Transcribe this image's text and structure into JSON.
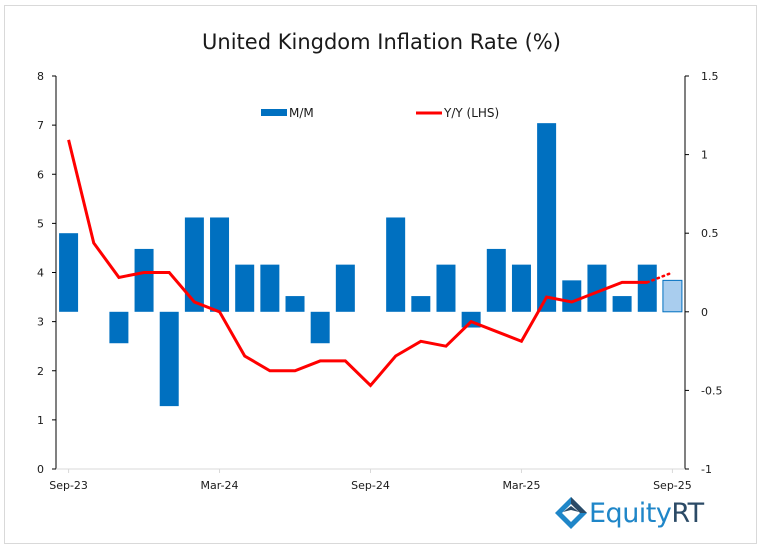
{
  "chart_data": {
    "type": "bar+line",
    "title": "United Kingdom Inflation Rate (%)",
    "categories": [
      "Sep-23",
      "Oct-23",
      "Nov-23",
      "Dec-23",
      "Jan-24",
      "Feb-24",
      "Mar-24",
      "Apr-24",
      "May-24",
      "Jun-24",
      "Jul-24",
      "Aug-24",
      "Sep-24",
      "Oct-24",
      "Nov-24",
      "Dec-24",
      "Jan-25",
      "Feb-25",
      "Mar-25",
      "Apr-25",
      "May-25",
      "Jun-25",
      "Jul-25",
      "Aug-25",
      "Sep-25"
    ],
    "x_tick_labels": [
      "Sep-23",
      "Mar-24",
      "Sep-24",
      "Mar-25",
      "Sep-25"
    ],
    "series": [
      {
        "name": "M/M",
        "type": "bar",
        "axis": "right",
        "color": "#0070c0",
        "forecast_color": "#a9cdee",
        "values": [
          0.5,
          0.0,
          -0.2,
          0.4,
          -0.6,
          0.6,
          0.6,
          0.3,
          0.3,
          0.1,
          -0.2,
          0.3,
          0.0,
          0.6,
          0.1,
          0.3,
          -0.1,
          0.4,
          0.3,
          1.2,
          0.2,
          0.3,
          0.1,
          0.3,
          0.2
        ],
        "forecast_from_index": 24
      },
      {
        "name": "Y/Y (LHS)",
        "type": "line",
        "axis": "left",
        "color": "#ff0000",
        "values": [
          6.7,
          4.6,
          3.9,
          4.0,
          4.0,
          3.4,
          3.2,
          2.3,
          2.0,
          2.0,
          2.2,
          2.2,
          1.7,
          2.3,
          2.6,
          2.5,
          3.0,
          2.8,
          2.6,
          3.5,
          3.4,
          3.6,
          3.8,
          3.8,
          4.0
        ],
        "forecast_from_index": 24
      }
    ],
    "left_axis": {
      "min": 0,
      "max": 8,
      "ticks": [
        0,
        1,
        2,
        3,
        4,
        5,
        6,
        7,
        8
      ]
    },
    "right_axis": {
      "min": -1,
      "max": 1.5,
      "ticks": [
        -1,
        -0.5,
        0,
        0.5,
        1,
        1.5
      ],
      "tick_labels": [
        "-1",
        "-0.5",
        "0",
        "0.5",
        "1",
        "1.5"
      ]
    },
    "legend": {
      "placement": "top-center",
      "entries": [
        "M/M",
        "Y/Y (LHS)"
      ]
    },
    "grid": false
  },
  "branding": {
    "logo_text_main": "Equity",
    "logo_text_accent": "RT"
  }
}
